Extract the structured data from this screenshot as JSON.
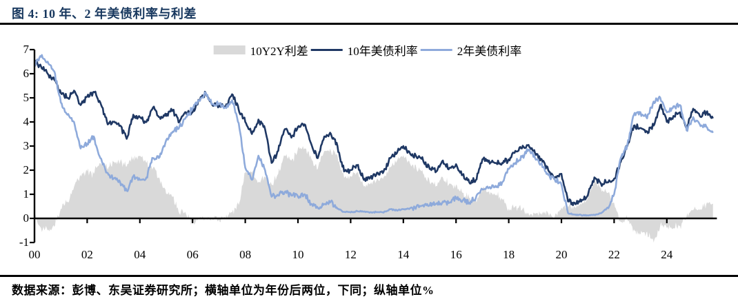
{
  "header": {
    "title": "图 4:  10 年、2 年美债利率与利差"
  },
  "footer": {
    "source_note": "数据来源：彭博、东吴证券研究所；横轴单位为年份后两位，下同；纵轴单位%"
  },
  "chart_data": {
    "type": "line",
    "title": "10 年、2 年美债利率与利差",
    "legend": [
      "10Y2Y利差",
      "10年美债利率",
      "2年美债利率"
    ],
    "legend_position": "top-center",
    "xlabel": "年份后两位",
    "ylabel": "%",
    "ylim": [
      -1,
      7
    ],
    "y_ticks": [
      7,
      6,
      5,
      4,
      3,
      2,
      1,
      0,
      -1
    ],
    "x_tick_labels": [
      "00",
      "02",
      "04",
      "06",
      "08",
      "10",
      "12",
      "14",
      "16",
      "18",
      "20",
      "22",
      "24"
    ],
    "x_tick_years": [
      2000,
      2002,
      2004,
      2006,
      2008,
      2010,
      2012,
      2014,
      2016,
      2018,
      2020,
      2022,
      2024
    ],
    "x_start": 2000,
    "x_step": 0.25,
    "x_end": 2025.9,
    "grid": false,
    "colors": {
      "spread_fill": "#d9d9d9",
      "line_10y": "#1f3864",
      "line_2y": "#8eaadb",
      "axis": "#000000",
      "title_text": "#17375e"
    },
    "series": [
      {
        "name": "10年美债利率",
        "values": [
          6.5,
          6.3,
          6.0,
          5.75,
          5.2,
          5.0,
          5.3,
          4.7,
          5.05,
          5.25,
          4.8,
          4.0,
          4.0,
          3.85,
          3.3,
          4.3,
          4.2,
          4.0,
          4.6,
          4.2,
          4.25,
          4.5,
          4.0,
          4.4,
          4.4,
          4.9,
          5.2,
          4.7,
          4.7,
          4.6,
          5.15,
          4.5,
          4.0,
          3.5,
          4.1,
          3.7,
          2.3,
          2.8,
          3.7,
          3.35,
          3.8,
          3.9,
          3.1,
          2.5,
          3.4,
          3.5,
          3.0,
          1.95,
          2.0,
          2.2,
          1.6,
          1.7,
          1.9,
          1.95,
          2.5,
          2.7,
          3.0,
          2.7,
          2.55,
          2.4,
          2.05,
          1.95,
          2.4,
          2.1,
          2.25,
          1.8,
          1.5,
          1.6,
          2.45,
          2.4,
          2.3,
          2.3,
          2.45,
          2.8,
          2.9,
          3.05,
          2.7,
          2.45,
          2.0,
          1.7,
          1.85,
          0.7,
          0.65,
          0.7,
          0.95,
          1.7,
          1.45,
          1.5,
          1.65,
          2.35,
          3.0,
          3.85,
          3.75,
          3.6,
          3.85,
          4.7,
          4.0,
          4.25,
          4.4,
          3.75,
          4.55,
          4.25,
          4.4,
          4.15
        ]
      },
      {
        "name": "2年美债利率",
        "values": [
          6.4,
          6.7,
          6.5,
          6.1,
          4.8,
          4.3,
          4.0,
          2.9,
          3.1,
          3.4,
          2.5,
          1.9,
          1.65,
          1.5,
          1.15,
          1.75,
          1.6,
          1.7,
          2.5,
          2.55,
          3.25,
          3.6,
          3.8,
          4.2,
          4.55,
          4.9,
          5.2,
          4.75,
          4.75,
          4.6,
          4.9,
          3.95,
          2.1,
          1.6,
          2.6,
          2.0,
          0.9,
          0.95,
          1.1,
          0.95,
          0.9,
          1.0,
          0.6,
          0.45,
          0.6,
          0.7,
          0.4,
          0.27,
          0.25,
          0.3,
          0.28,
          0.26,
          0.26,
          0.24,
          0.38,
          0.33,
          0.38,
          0.42,
          0.5,
          0.55,
          0.55,
          0.6,
          0.7,
          0.65,
          0.85,
          0.75,
          0.65,
          0.85,
          1.2,
          1.28,
          1.35,
          1.5,
          2.05,
          2.3,
          2.55,
          2.85,
          2.5,
          2.3,
          1.8,
          1.6,
          1.4,
          0.22,
          0.16,
          0.14,
          0.12,
          0.15,
          0.21,
          0.45,
          1.0,
          2.5,
          3.05,
          4.3,
          4.4,
          4.15,
          4.85,
          5.0,
          4.4,
          4.65,
          4.7,
          3.65,
          4.2,
          3.9,
          3.8,
          3.55
        ]
      },
      {
        "name": "10Y2Y利差",
        "derived": "series0_minus_series1",
        "style": "area"
      }
    ]
  }
}
